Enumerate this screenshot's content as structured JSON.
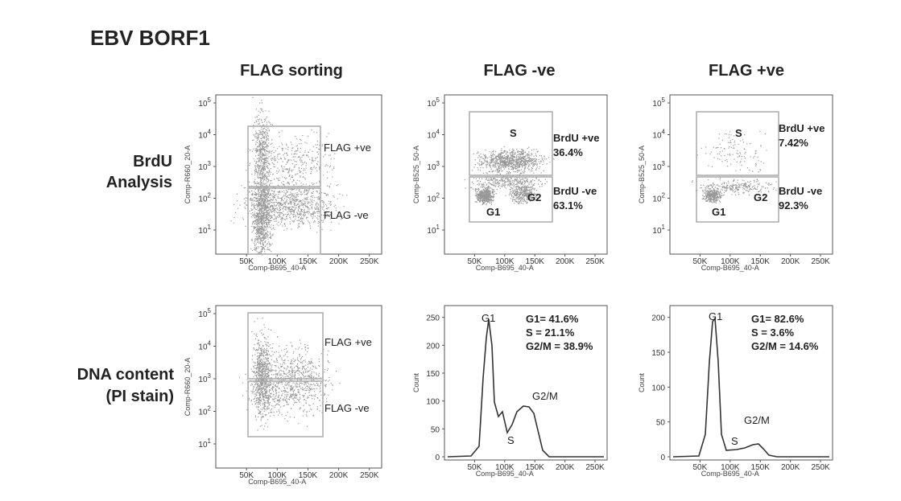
{
  "title": "EBV BORF1",
  "column_headers": [
    "FLAG sorting",
    "FLAG -ve",
    "FLAG +ve"
  ],
  "row_labels": [
    [
      "BrdU",
      "Analysis"
    ],
    [
      "DNA content",
      "(PI stain)"
    ]
  ],
  "panels": [
    {
      "y_axis_label": "Comp-R660_20-A",
      "x_axis_label": "Comp-B695_40-A",
      "x_ticks": [
        "50K",
        "100K",
        "150K",
        "200K",
        "250K"
      ],
      "y_ticks": [
        {
          "base": "10",
          "exponent": "1"
        },
        {
          "base": "10",
          "exponent": "2"
        },
        {
          "base": "10",
          "exponent": "3"
        },
        {
          "base": "10",
          "exponent": "4"
        },
        {
          "base": "10",
          "exponent": "5"
        }
      ],
      "labels": [
        "FLAG +ve",
        "FLAG -ve"
      ]
    },
    {
      "y_axis_label": "Comp-B525_50-A",
      "x_axis_label": "Comp-B695_40-A",
      "x_ticks": [
        "50K",
        "100K",
        "150K",
        "200K",
        "250K"
      ],
      "y_ticks": [
        {
          "base": "10",
          "exponent": "1"
        },
        {
          "base": "10",
          "exponent": "2"
        },
        {
          "base": "10",
          "exponent": "3"
        },
        {
          "base": "10",
          "exponent": "4"
        },
        {
          "base": "10",
          "exponent": "5"
        }
      ],
      "labels": [
        "S",
        "G1",
        "G2",
        "BrdU +ve",
        "36.4%",
        "BrdU -ve",
        "63.1%"
      ]
    },
    {
      "y_axis_label": "Comp-B525_50-A",
      "x_axis_label": "Comp-B695_40-A",
      "x_ticks": [
        "50K",
        "100K",
        "150K",
        "200K",
        "250K"
      ],
      "y_ticks": [
        {
          "base": "10",
          "exponent": "1"
        },
        {
          "base": "10",
          "exponent": "2"
        },
        {
          "base": "10",
          "exponent": "3"
        },
        {
          "base": "10",
          "exponent": "4"
        },
        {
          "base": "10",
          "exponent": "5"
        }
      ],
      "labels": [
        "S",
        "G1",
        "G2",
        "BrdU +ve",
        "7.42%",
        "BrdU -ve",
        "92.3%"
      ]
    },
    {
      "y_axis_label": "Comp-R660_20-A",
      "x_axis_label": "Comp-B695_40-A",
      "x_ticks": [
        "50K",
        "100K",
        "150K",
        "200K",
        "250K"
      ],
      "y_ticks": [
        {
          "base": "10",
          "exponent": "1"
        },
        {
          "base": "10",
          "exponent": "2"
        },
        {
          "base": "10",
          "exponent": "3"
        },
        {
          "base": "10",
          "exponent": "4"
        },
        {
          "base": "10",
          "exponent": "5"
        }
      ],
      "labels": [
        "FLAG +ve",
        "FLAG -ve"
      ]
    },
    {
      "y_axis_label": "Count",
      "x_axis_label": "Comp-B695_40-A",
      "x_ticks": [
        "50K",
        "100K",
        "150K",
        "200K",
        "250K"
      ],
      "y_ticks": [
        "0",
        "50",
        "100",
        "150",
        "200",
        "250"
      ],
      "labels": [
        "G1",
        "S",
        "G2/M",
        "G1= 41.6%",
        "S = 21.1%",
        "G2/M = 38.9%"
      ]
    },
    {
      "y_axis_label": "Count",
      "x_axis_label": "Comp-B695_40-A",
      "x_ticks": [
        "50K",
        "100K",
        "150K",
        "200K",
        "250K"
      ],
      "y_ticks": [
        "0",
        "50",
        "100",
        "150",
        "200"
      ],
      "labels": [
        "G1",
        "S",
        "G2/M",
        "G1= 82.6%",
        "S = 3.6%",
        "G2/M = 14.6%"
      ]
    }
  ]
}
